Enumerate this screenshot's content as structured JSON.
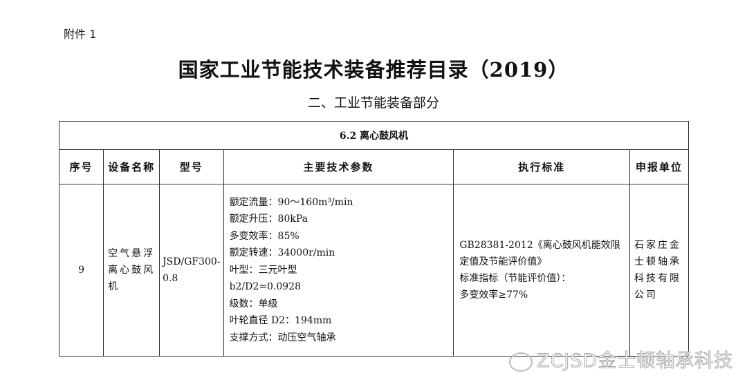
{
  "attachment_label": "附件 1",
  "title": "国家工业节能技术装备推荐目录（2019）",
  "subtitle": "二、工业节能装备部分",
  "table": {
    "section": "6.2 离心鼓风机",
    "headers": [
      "序号",
      "设备名称",
      "型号",
      "主要技术参数",
      "执行标准",
      "申报单位"
    ],
    "row": {
      "index": "9",
      "name": "空气悬浮离心鼓风机",
      "model": "JSD/GF300-0.8",
      "params": [
        "额定流量：90～160m³/min",
        "额定升压：80kPa",
        "多变效率：85%",
        "额定转速：34000r/min",
        "叶型：三元叶型",
        "b2/D2=0.0928",
        "级数：单级",
        "叶轮直径 D2：194mm",
        "支撑方式：动压空气轴承"
      ],
      "standard": [
        "GB28381-2012《离心鼓风机能效限定值及节能评价值》",
        "标准指标（节能评价值）：",
        "多变效率≥77%"
      ],
      "unit": "石家庄金士顿轴承科技有限公司"
    }
  },
  "watermark": "ZCJSD金士顿轴承科技"
}
